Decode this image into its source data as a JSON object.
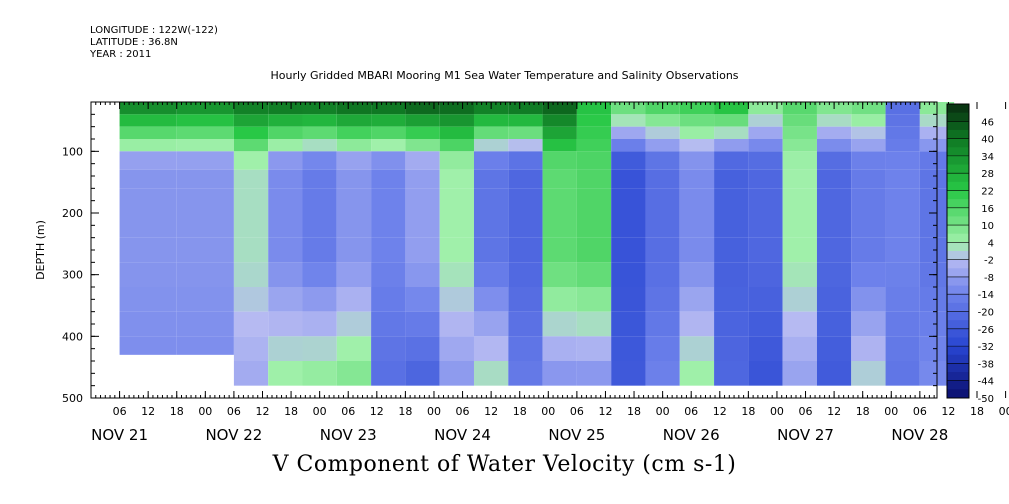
{
  "header": {
    "longitude": "LONGITUDE : 122W(-122)",
    "latitude": "LATITUDE : 36.8N",
    "year": "YEAR : 2011"
  },
  "chart_data": {
    "type": "heatmap",
    "title": "Hourly Gridded MBARI Mooring M1 Sea Water Temperature and Salinity Observations",
    "xlabel": "V Component of Water Velocity (cm s-1)",
    "ylabel": "DEPTH (m)",
    "ylim": [
      500,
      20
    ],
    "y_ticks": [
      100,
      200,
      300,
      400,
      500
    ],
    "x_hour_ticks": [
      "06",
      "12",
      "18",
      "00",
      "06",
      "12",
      "18",
      "00",
      "06",
      "12",
      "18",
      "00",
      "06",
      "12",
      "18",
      "00",
      "06",
      "12",
      "18",
      "00",
      "06",
      "12",
      "18",
      "00",
      "06",
      "12",
      "18",
      "00",
      "06",
      "12",
      "18",
      "00"
    ],
    "x_day_labels": [
      "NOV 21",
      "NOV 22",
      "NOV 23",
      "NOV 24",
      "NOV 25",
      "NOV 26",
      "NOV 27",
      "NOV 28"
    ],
    "colorbar_ticks": [
      46,
      40,
      34,
      28,
      22,
      16,
      10,
      4,
      -2,
      -8,
      -14,
      -20,
      -26,
      -32,
      -38,
      -44,
      -50
    ],
    "colorbar_range": [
      -50,
      52
    ],
    "colors": {
      "dark_green": "#0a3d12",
      "green": "#1fbf3a",
      "light_green": "#9ef2a6",
      "light_blue": "#b6baf2",
      "blue": "#3a5ee0",
      "dark_blue": "#0a0f6e"
    },
    "velocity_columns": [
      {
        "day": 21.0,
        "surface": 40,
        "mid": -10,
        "deep": -12
      },
      {
        "day": 21.5,
        "surface": 38,
        "mid": -10,
        "deep": -12
      },
      {
        "day": 22.0,
        "surface": 42,
        "mid": 2,
        "deep": -6
      },
      {
        "day": 22.3,
        "surface": 44,
        "mid": -12,
        "deep": 6
      },
      {
        "day": 22.6,
        "surface": 44,
        "mid": -16,
        "deep": 8
      },
      {
        "day": 22.9,
        "surface": 46,
        "mid": -10,
        "deep": 10
      },
      {
        "day": 23.2,
        "surface": 46,
        "mid": -14,
        "deep": -20
      },
      {
        "day": 23.5,
        "surface": 48,
        "mid": -8,
        "deep": -24
      },
      {
        "day": 23.8,
        "surface": 46,
        "mid": 4,
        "deep": -10
      },
      {
        "day": 24.1,
        "surface": 44,
        "mid": -18,
        "deep": 4
      },
      {
        "day": 24.4,
        "surface": 46,
        "mid": -22,
        "deep": -16
      },
      {
        "day": 24.7,
        "surface": 46,
        "mid": 14,
        "deep": -12
      },
      {
        "day": 25.0,
        "surface": 24,
        "mid": 16,
        "deep": -12
      },
      {
        "day": 25.3,
        "surface": 16,
        "mid": -28,
        "deep": -26
      },
      {
        "day": 25.6,
        "surface": 20,
        "mid": -20,
        "deep": -14
      },
      {
        "day": 25.9,
        "surface": 22,
        "mid": -12,
        "deep": 6
      },
      {
        "day": 26.2,
        "surface": 28,
        "mid": -24,
        "deep": -22
      },
      {
        "day": 26.5,
        "surface": 10,
        "mid": -22,
        "deep": -28
      },
      {
        "day": 26.8,
        "surface": 16,
        "mid": 4,
        "deep": -8
      },
      {
        "day": 27.1,
        "surface": 12,
        "mid": -22,
        "deep": -26
      },
      {
        "day": 27.4,
        "surface": 14,
        "mid": -16,
        "deep": 2
      },
      {
        "day": 27.7,
        "surface": -20,
        "mid": -14,
        "deep": -18
      },
      {
        "day": 28.0,
        "surface": 10,
        "mid": -18,
        "deep": -12
      }
    ]
  }
}
